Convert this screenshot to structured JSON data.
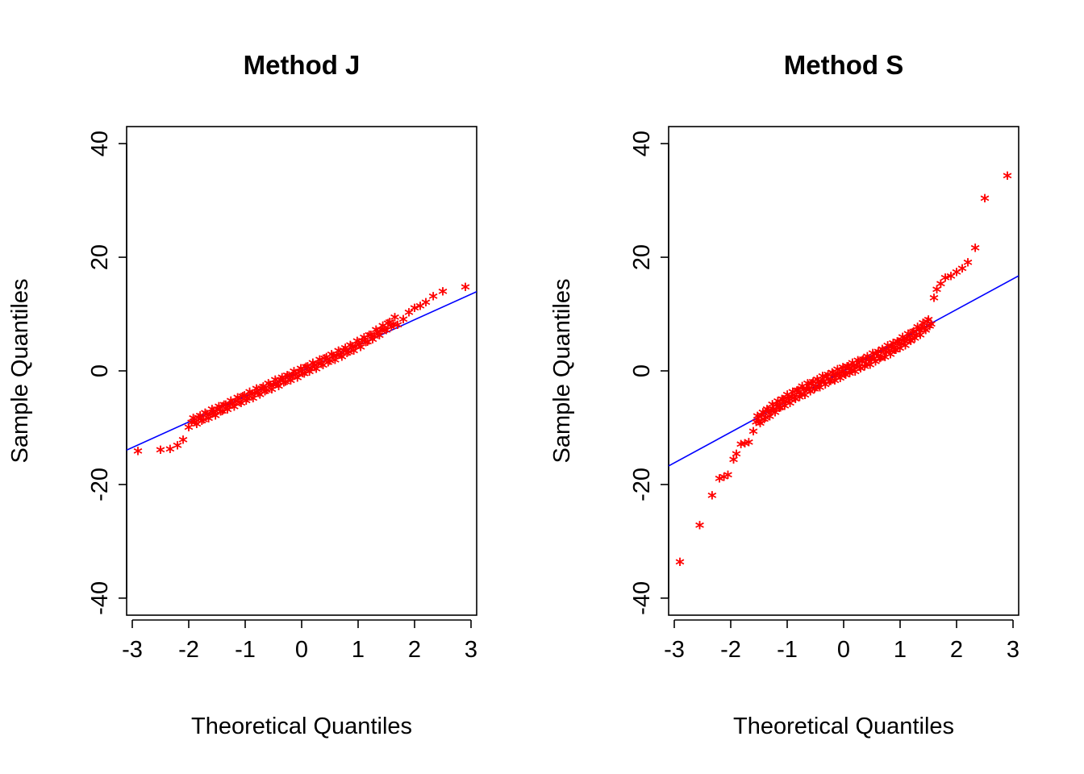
{
  "colors": {
    "points": "#ff0000",
    "line": "#0000ff",
    "axes": "#000000",
    "background": "#ffffff"
  },
  "point_symbol": "*",
  "chart_data": [
    {
      "type": "scatter",
      "title": "Method J",
      "xlabel": "Theoretical Quantiles",
      "ylabel": "Sample Quantiles",
      "xlim": [
        -3.1,
        3.1
      ],
      "ylim": [
        -43,
        43
      ],
      "xticks": [
        -3,
        -2,
        -1,
        0,
        1,
        2,
        3
      ],
      "yticks": [
        -40,
        -20,
        0,
        20,
        40
      ],
      "x_tick_labels": [
        "-3",
        "-2",
        "-1",
        "0",
        "1",
        "2",
        "3"
      ],
      "y_tick_labels": [
        "-40",
        "-20",
        "0",
        "20",
        "40"
      ],
      "reference_line": {
        "slope": 4.5,
        "intercept": 0
      },
      "tail_points": [
        {
          "x": -2.9,
          "y": -14
        },
        {
          "x": -2.5,
          "y": -13.8
        },
        {
          "x": -2.33,
          "y": -13.6
        },
        {
          "x": -2.2,
          "y": -13
        },
        {
          "x": -2.1,
          "y": -12
        },
        {
          "x": -2.0,
          "y": -9.8
        },
        {
          "x": 1.7,
          "y": 8.2
        },
        {
          "x": 1.8,
          "y": 9.2
        },
        {
          "x": 1.9,
          "y": 10.4
        },
        {
          "x": 2.0,
          "y": 11.2
        },
        {
          "x": 2.1,
          "y": 11.6
        },
        {
          "x": 2.2,
          "y": 12.2
        },
        {
          "x": 2.33,
          "y": 13.3
        },
        {
          "x": 2.5,
          "y": 14.1
        },
        {
          "x": 2.9,
          "y": 14.9
        }
      ],
      "body_pattern": {
        "x_from": -1.95,
        "x_to": 1.65,
        "n": 120,
        "shape": "linear-with-mild-upper-tail",
        "scale": 4.6,
        "deviation_amplitude": 0.7
      }
    },
    {
      "type": "scatter",
      "title": "Method S",
      "xlabel": "Theoretical Quantiles",
      "ylabel": "Sample Quantiles",
      "xlim": [
        -3.1,
        3.1
      ],
      "ylim": [
        -43,
        43
      ],
      "xticks": [
        -3,
        -2,
        -1,
        0,
        1,
        2,
        3
      ],
      "yticks": [
        -40,
        -20,
        0,
        20,
        40
      ],
      "x_tick_labels": [
        "-3",
        "-2",
        "-1",
        "0",
        "1",
        "2",
        "3"
      ],
      "y_tick_labels": [
        "-40",
        "-20",
        "0",
        "20",
        "40"
      ],
      "reference_line": {
        "slope": 5.4,
        "intercept": 0
      },
      "tail_points": [
        {
          "x": -2.9,
          "y": -33.5
        },
        {
          "x": -2.55,
          "y": -27
        },
        {
          "x": -2.33,
          "y": -21.8
        },
        {
          "x": -2.2,
          "y": -18.8
        },
        {
          "x": -2.12,
          "y": -18.5
        },
        {
          "x": -2.05,
          "y": -18.2
        },
        {
          "x": -1.95,
          "y": -15.5
        },
        {
          "x": -1.9,
          "y": -14.5
        },
        {
          "x": -1.82,
          "y": -12.8
        },
        {
          "x": -1.75,
          "y": -12.6
        },
        {
          "x": -1.68,
          "y": -12.4
        },
        {
          "x": -1.6,
          "y": -10.5
        },
        {
          "x": 1.6,
          "y": 13
        },
        {
          "x": 1.65,
          "y": 14.5
        },
        {
          "x": 1.72,
          "y": 15.5
        },
        {
          "x": 1.8,
          "y": 16.5
        },
        {
          "x": 1.9,
          "y": 16.8
        },
        {
          "x": 2.0,
          "y": 17.5
        },
        {
          "x": 2.1,
          "y": 18.2
        },
        {
          "x": 2.2,
          "y": 19.2
        },
        {
          "x": 2.33,
          "y": 21.8
        },
        {
          "x": 2.5,
          "y": 30.5
        },
        {
          "x": 2.9,
          "y": 34.5
        }
      ],
      "body_pattern": {
        "x_from": -1.55,
        "x_to": 1.55,
        "n": 130,
        "shape": "s-curve-heavy-tails",
        "scale": 4.4,
        "deviation_amplitude": 0.9
      }
    }
  ]
}
